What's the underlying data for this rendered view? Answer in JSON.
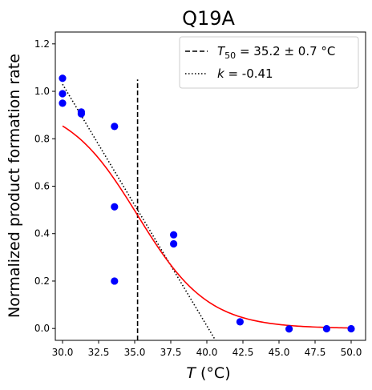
{
  "chart_data": {
    "type": "scatter",
    "title": "Q19A",
    "xlabel": {
      "italic": "T",
      "unit": " (°C)"
    },
    "ylabel": "Normalized product formation rate",
    "xlim": [
      29.5,
      51.0
    ],
    "ylim": [
      -0.05,
      1.25
    ],
    "xticks": [
      30.0,
      32.5,
      35.0,
      37.5,
      40.0,
      42.5,
      45.0,
      47.5,
      50.0
    ],
    "xtick_labels": [
      "30.0",
      "32.5",
      "35.0",
      "37.5",
      "40.0",
      "42.5",
      "45.0",
      "47.5",
      "50.0"
    ],
    "yticks": [
      0.0,
      0.2,
      0.4,
      0.6,
      0.8,
      1.0,
      1.2
    ],
    "ytick_labels": [
      "0.0",
      "0.2",
      "0.4",
      "0.6",
      "0.8",
      "1.0",
      "1.2"
    ],
    "grid": false,
    "legend_position": "top-right",
    "points": {
      "color": "#0000ff",
      "x": [
        30.0,
        30.0,
        30.0,
        31.3,
        31.3,
        33.6,
        33.6,
        33.6,
        37.7,
        37.7,
        42.3,
        45.7,
        48.3,
        50.0
      ],
      "y": [
        1.055,
        0.99,
        0.95,
        0.913,
        0.905,
        0.852,
        0.513,
        0.2,
        0.395,
        0.357,
        0.028,
        -0.002,
        -0.001,
        -0.001
      ]
    },
    "fit_curve": {
      "color": "#ff0000",
      "model": "sigmoid",
      "top": 0.955,
      "bottom": 0.0,
      "midpoint": 35.2,
      "slope": 0.41,
      "x_range": [
        30.0,
        50.0
      ]
    },
    "t50_line": {
      "style": "dashed",
      "color": "#000000",
      "x": 35.2,
      "y_range": [
        -0.05,
        1.05
      ],
      "legend_label": {
        "sym": "T",
        "sub": "50",
        "rest": " = 35.2 ± 0.7 °C"
      }
    },
    "slope_line": {
      "style": "dotted",
      "color": "#000000",
      "x_range": [
        30.0,
        40.6
      ],
      "y_range": [
        1.03,
        -0.05
      ],
      "legend_label": {
        "sym": "k",
        "rest": " = -0.41"
      }
    }
  }
}
